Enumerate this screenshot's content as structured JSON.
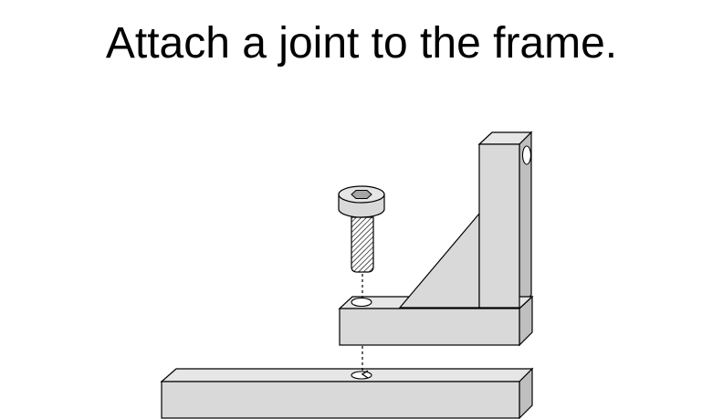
{
  "slide": {
    "title": "Attach a joint to the frame."
  },
  "colors": {
    "background": "#ffffff",
    "part_fill": "#d9d9d9",
    "part_dark": "#bfbfbf",
    "part_light": "#e6e6e6",
    "outline": "#000000"
  },
  "icons": {
    "bolt": "hex-socket-cap-screw-icon",
    "hole": "hole-icon",
    "arrow": "dashed-arrow-icon"
  }
}
